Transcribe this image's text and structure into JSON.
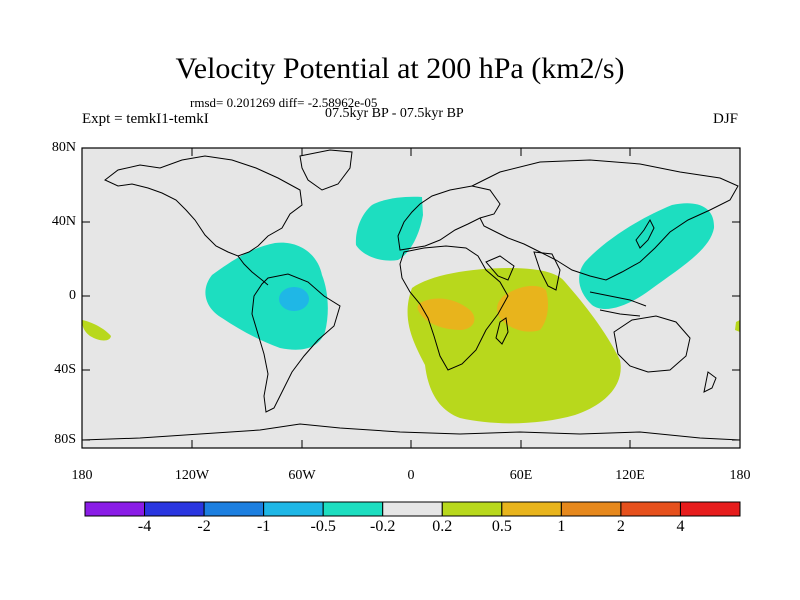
{
  "title": "Velocity Potential at 200 hPa (km2/s)",
  "stats": "rmsd= 0.201269 diff= -2.58962e-05",
  "period": "07.5kyr BP - 07.5kyr BP",
  "experiment": "Expt = temkI1-temkI",
  "season": "DJF",
  "lat_labels": [
    "80N",
    "40N",
    "0",
    "40S",
    "80S"
  ],
  "lon_labels": [
    "180",
    "120W",
    "60W",
    "0",
    "60E",
    "120E",
    "180"
  ],
  "colorbar": {
    "colors": [
      "#8a1ce6",
      "#2a36e0",
      "#1c7fe0",
      "#1fb7e6",
      "#1ddec0",
      "#e6e6e6",
      "#b8d81c",
      "#e8b41c",
      "#e6881c",
      "#e6501c",
      "#e61c1c"
    ],
    "labels": [
      "-4",
      "-2",
      "-1",
      "-0.5",
      "-0.2",
      "0.2",
      "0.5",
      "1",
      "2",
      "4"
    ]
  },
  "colors": {
    "land_bg": "#e6e6e6",
    "neg_02": "#1ddec0",
    "neg_05": "#1fb7e6",
    "pos_02": "#b8d81c",
    "pos_05": "#e8b41c"
  }
}
